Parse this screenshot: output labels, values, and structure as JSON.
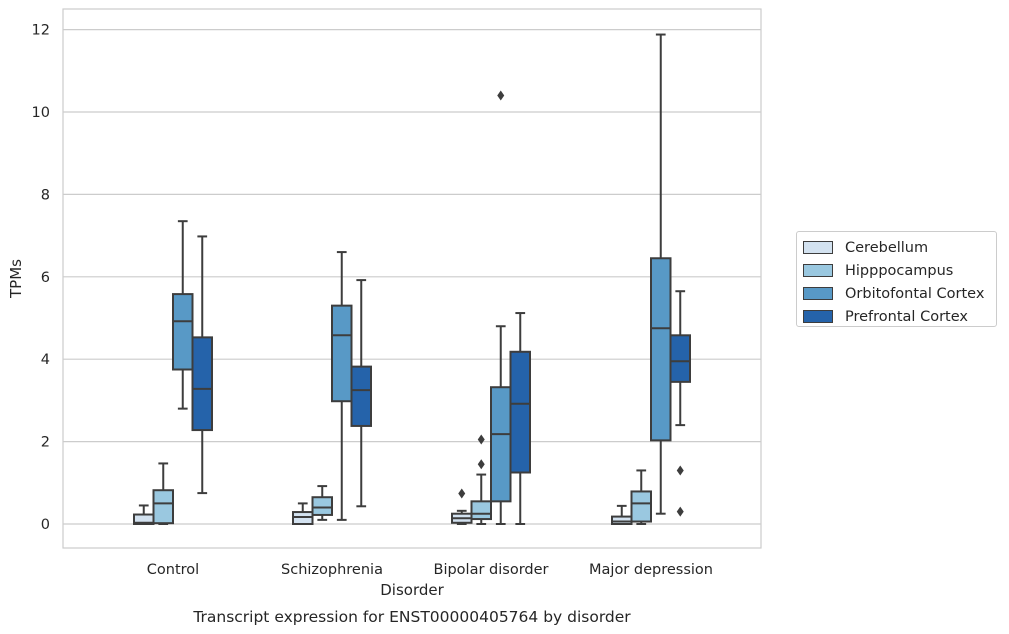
{
  "chart_data": {
    "type": "box",
    "title": "Transcript expression for ENST00000405764 by disorder",
    "xlabel": "Disorder",
    "ylabel": "TPMs",
    "ylim": [
      -0.55,
      12.5
    ],
    "yticks": [
      0,
      2,
      4,
      6,
      8,
      10,
      12
    ],
    "grid": true,
    "legend_position": "right",
    "categories": [
      "Control",
      "Schizophrenia",
      "Bipolar disorder",
      "Major depression"
    ],
    "series": [
      {
        "name": "Cerebellum",
        "color": "#d3e2f0",
        "boxes": [
          {
            "whisker_low": 0.0,
            "q1": 0.0,
            "median": 0.03,
            "q3": 0.23,
            "whisker_high": 0.45,
            "outliers": []
          },
          {
            "whisker_low": 0.0,
            "q1": 0.0,
            "median": 0.17,
            "q3": 0.29,
            "whisker_high": 0.5,
            "outliers": []
          },
          {
            "whisker_low": 0.0,
            "q1": 0.03,
            "median": 0.14,
            "q3": 0.25,
            "whisker_high": 0.32,
            "outliers": [
              0.74
            ]
          },
          {
            "whisker_low": 0.0,
            "q1": 0.0,
            "median": 0.06,
            "q3": 0.18,
            "whisker_high": 0.44,
            "outliers": []
          }
        ]
      },
      {
        "name": "Hipppocampus",
        "color": "#9ac8e0",
        "boxes": [
          {
            "whisker_low": 0.0,
            "q1": 0.02,
            "median": 0.5,
            "q3": 0.82,
            "whisker_high": 1.47,
            "outliers": []
          },
          {
            "whisker_low": 0.1,
            "q1": 0.22,
            "median": 0.4,
            "q3": 0.65,
            "whisker_high": 0.92,
            "outliers": []
          },
          {
            "whisker_low": 0.0,
            "q1": 0.12,
            "median": 0.25,
            "q3": 0.55,
            "whisker_high": 1.2,
            "outliers": [
              1.45,
              2.05
            ]
          },
          {
            "whisker_low": 0.0,
            "q1": 0.06,
            "median": 0.5,
            "q3": 0.79,
            "whisker_high": 1.3,
            "outliers": []
          }
        ]
      },
      {
        "name": "Orbitofontal Cortex",
        "color": "#5899c6",
        "boxes": [
          {
            "whisker_low": 2.8,
            "q1": 3.75,
            "median": 4.92,
            "q3": 5.58,
            "whisker_high": 7.35,
            "outliers": []
          },
          {
            "whisker_low": 0.1,
            "q1": 2.98,
            "median": 4.58,
            "q3": 5.3,
            "whisker_high": 6.6,
            "outliers": []
          },
          {
            "whisker_low": 0.0,
            "q1": 0.55,
            "median": 2.18,
            "q3": 3.32,
            "whisker_high": 4.8,
            "outliers": [
              10.4
            ]
          },
          {
            "whisker_low": 0.25,
            "q1": 2.03,
            "median": 4.75,
            "q3": 6.45,
            "whisker_high": 11.88,
            "outliers": []
          }
        ]
      },
      {
        "name": "Prefrontal Cortex",
        "color": "#2563aa",
        "boxes": [
          {
            "whisker_low": 0.75,
            "q1": 2.28,
            "median": 3.28,
            "q3": 4.53,
            "whisker_high": 6.98,
            "outliers": []
          },
          {
            "whisker_low": 0.43,
            "q1": 2.38,
            "median": 3.25,
            "q3": 3.82,
            "whisker_high": 5.92,
            "outliers": []
          },
          {
            "whisker_low": 0.0,
            "q1": 1.25,
            "median": 2.92,
            "q3": 4.18,
            "whisker_high": 5.12,
            "outliers": []
          },
          {
            "whisker_low": 2.4,
            "q1": 3.45,
            "median": 3.95,
            "q3": 4.58,
            "whisker_high": 5.65,
            "outliers": [
              1.3,
              0.3
            ]
          }
        ]
      }
    ]
  }
}
